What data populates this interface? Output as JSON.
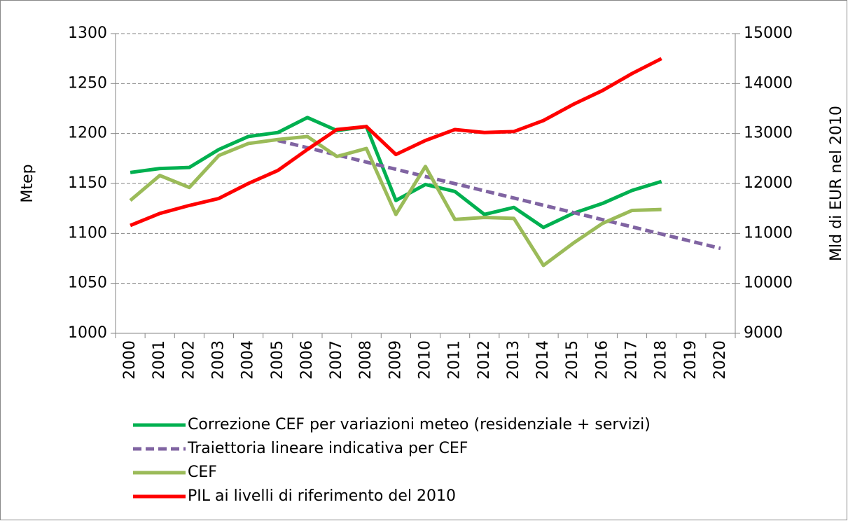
{
  "chart_data": {
    "type": "line",
    "categories": [
      "2000",
      "2001",
      "2002",
      "2003",
      "2004",
      "2005",
      "2006",
      "2007",
      "2008",
      "2009",
      "2010",
      "2011",
      "2012",
      "2013",
      "2014",
      "2015",
      "2016",
      "2017",
      "2018",
      "2019",
      "2020"
    ],
    "ylabel": "Mtep",
    "y2label": "Mld di EUR nel 2010",
    "ylim": [
      1000,
      1300
    ],
    "yticks": [
      1000,
      1050,
      1100,
      1150,
      1200,
      1250,
      1300
    ],
    "y2lim": [
      9000,
      15000
    ],
    "y2ticks": [
      9000,
      10000,
      11000,
      12000,
      13000,
      14000,
      15000
    ],
    "grid": true,
    "series": [
      {
        "name": "Correzione CEF per variazioni meteo (residenziale + servizi)",
        "color": "#00b050",
        "dashed": false,
        "values": [
          1161,
          1165,
          1166,
          1184,
          1197,
          1201,
          1216,
          1203,
          1207,
          1133,
          1149,
          1142,
          1119,
          1126,
          1106,
          1120,
          1130,
          1143,
          1152,
          null,
          null
        ]
      },
      {
        "name": "Traiettoria lineare indicativa per CEF",
        "color": "#8064a2",
        "dashed": true,
        "values": [
          null,
          null,
          null,
          null,
          null,
          1193,
          1185.8,
          1178.6,
          1171.4,
          1164.2,
          1157,
          1149.8,
          1142.6,
          1135.4,
          1128.2,
          1121,
          1113.8,
          1106.6,
          1099.4,
          1092.2,
          1085
        ]
      },
      {
        "name": "CEF",
        "color": "#9bbb59",
        "dashed": false,
        "values": [
          1133,
          1158,
          1146,
          1178,
          1190,
          1194,
          1197,
          1177,
          1185,
          1119,
          1167,
          1114,
          1116,
          1115,
          1068,
          1090,
          1110,
          1123,
          1124,
          null,
          null
        ]
      },
      {
        "name": "PIL ai livelli di riferimento del 2010",
        "color": "#ff0000",
        "dashed": false,
        "axis": "y2",
        "values": [
          11160,
          11400,
          11560,
          11700,
          12000,
          12260,
          12680,
          13080,
          13140,
          12580,
          12860,
          13080,
          13020,
          13040,
          13260,
          13580,
          13860,
          14200,
          14500,
          null,
          null
        ]
      }
    ]
  }
}
